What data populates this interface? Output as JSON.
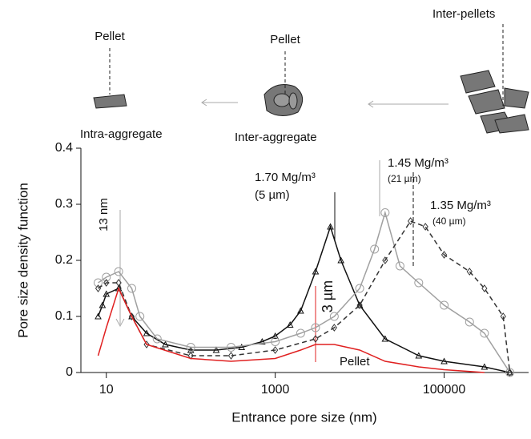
{
  "diagram": {
    "labels": [
      "Pellet",
      "Pellet",
      "Inter-pellets",
      "Intra-aggregate",
      "Inter-aggregate"
    ]
  },
  "chart_data": {
    "type": "line",
    "y_label": "Pore size density function",
    "x_label": "Entrance pore size (nm)",
    "xlim": [
      5,
      1000000
    ],
    "xticks": [
      10,
      1000,
      100000
    ],
    "log_x": true,
    "ylim": [
      0,
      0.4
    ],
    "yticks": [
      0,
      0.1,
      0.2,
      0.3,
      0.4
    ],
    "annotations": [
      "13 nm",
      "(5 µm)",
      "(21 µm)",
      "(40 µm)",
      "3 µm"
    ],
    "series": [
      {
        "name": "1.70 Mg/m³",
        "color": "#111111",
        "marker": "triangle",
        "dash": false,
        "x": [
          8,
          9,
          10,
          14,
          20,
          30,
          50,
          100,
          200,
          400,
          700,
          1000,
          1500,
          2000,
          3000,
          4500,
          6000,
          10000,
          20000,
          50000,
          100000,
          300000,
          600000
        ],
        "values": [
          0.1,
          0.12,
          0.14,
          0.15,
          0.1,
          0.07,
          0.05,
          0.04,
          0.04,
          0.045,
          0.055,
          0.065,
          0.085,
          0.11,
          0.18,
          0.26,
          0.2,
          0.12,
          0.06,
          0.03,
          0.02,
          0.01,
          0
        ]
      },
      {
        "name": "1.45 Mg/m³",
        "color": "#a0a0a0",
        "marker": "circle",
        "dash": false,
        "x": [
          8,
          10,
          14,
          20,
          25,
          40,
          100,
          300,
          1000,
          2000,
          3000,
          5000,
          10000,
          15000,
          20000,
          30000,
          50000,
          100000,
          200000,
          300000,
          600000
        ],
        "values": [
          0.16,
          0.17,
          0.18,
          0.15,
          0.1,
          0.06,
          0.045,
          0.045,
          0.055,
          0.07,
          0.08,
          0.1,
          0.15,
          0.22,
          0.285,
          0.19,
          0.16,
          0.12,
          0.09,
          0.07,
          0
        ]
      },
      {
        "name": "1.35 Mg/m³",
        "color": "#333333",
        "marker": "diamond",
        "dash": true,
        "x": [
          8,
          10,
          14,
          20,
          30,
          100,
          300,
          1000,
          3000,
          5000,
          10000,
          20000,
          40000,
          60000,
          100000,
          200000,
          300000,
          500000,
          600000
        ],
        "values": [
          0.15,
          0.16,
          0.16,
          0.1,
          0.05,
          0.03,
          0.03,
          0.04,
          0.06,
          0.08,
          0.12,
          0.2,
          0.27,
          0.26,
          0.21,
          0.18,
          0.15,
          0.1,
          0
        ]
      },
      {
        "name": "Pellet",
        "color": "#e02020",
        "marker": "none",
        "dash": false,
        "x": [
          8,
          10,
          14,
          20,
          30,
          100,
          300,
          1000,
          2000,
          3000,
          5000,
          10000,
          20000,
          50000,
          100000,
          300000
        ],
        "values": [
          0.03,
          0.08,
          0.15,
          0.1,
          0.05,
          0.025,
          0.02,
          0.025,
          0.04,
          0.05,
          0.05,
          0.04,
          0.02,
          0.01,
          0.005,
          0
        ]
      }
    ]
  }
}
